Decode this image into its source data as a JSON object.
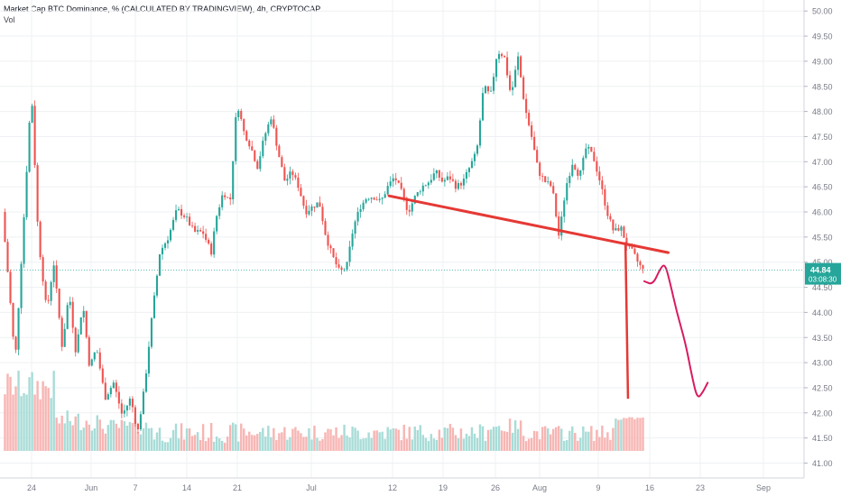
{
  "header": {
    "title": "Market Cap BTC Dominance, % (CALCULATED BY TRADINGVIEW), 4h, CRYPTOCAP",
    "volume_label": "Vol"
  },
  "price_axis": {
    "ticks": [
      "50.00",
      "49.50",
      "49.00",
      "48.50",
      "48.00",
      "47.50",
      "47.00",
      "46.50",
      "46.00",
      "45.50",
      "45.00",
      "44.50",
      "44.00",
      "43.50",
      "43.00",
      "42.50",
      "42.00",
      "41.50",
      "41.00"
    ]
  },
  "time_axis": {
    "ticks": [
      "24",
      "Jun",
      "7",
      "14",
      "21",
      "Jul",
      "12",
      "19",
      "26",
      "Aug",
      "9",
      "16",
      "23",
      "Sep"
    ]
  },
  "last_price": {
    "value": "44.84",
    "countdown": "03:08:30"
  },
  "colors": {
    "up": "#26a69a",
    "down": "#ef5350",
    "vol_up": "#a8dcd7",
    "vol_down": "#f7b5b3",
    "annotation": "#e53935",
    "annotation_path": "#d81b60",
    "grid": "#eef0f3",
    "axis_text": "#787b86"
  },
  "chart_data": {
    "type": "candlestick",
    "title": "Market Cap BTC Dominance, % (CALCULATED BY TRADINGVIEW), 4h, CRYPTOCAP",
    "timeframe": "4h",
    "ylim": [
      40.85,
      50.15
    ],
    "y_ticks": [
      41.0,
      41.5,
      42.0,
      42.5,
      43.0,
      43.5,
      44.0,
      44.5,
      45.0,
      45.5,
      46.0,
      46.5,
      47.0,
      47.5,
      48.0,
      48.5,
      49.0,
      49.5,
      50.0
    ],
    "last_value": 44.84,
    "grid": true,
    "price_path": [
      [
        0,
        46.0
      ],
      [
        0.8,
        44.5
      ],
      [
        1.5,
        43.0
      ],
      [
        2.5,
        45.8
      ],
      [
        3.4,
        48.45
      ],
      [
        4.2,
        45.5
      ],
      [
        5.2,
        44.0
      ],
      [
        6.0,
        45.0
      ],
      [
        7.0,
        43.3
      ],
      [
        7.8,
        44.4
      ],
      [
        8.6,
        43.2
      ],
      [
        9.4,
        44.2
      ],
      [
        10.2,
        42.9
      ],
      [
        11.0,
        43.3
      ],
      [
        12.0,
        42.3
      ],
      [
        13.0,
        42.6
      ],
      [
        14.0,
        41.95
      ],
      [
        15.0,
        42.3
      ],
      [
        15.8,
        41.6
      ],
      [
        16.6,
        42.5
      ],
      [
        17.4,
        43.8
      ],
      [
        18.4,
        45.2
      ],
      [
        19.4,
        45.5
      ],
      [
        20.4,
        46.05
      ],
      [
        21.4,
        45.9
      ],
      [
        22.4,
        45.6
      ],
      [
        23.4,
        45.6
      ],
      [
        24.4,
        45.2
      ],
      [
        25.0,
        45.9
      ],
      [
        25.8,
        46.4
      ],
      [
        26.6,
        46.2
      ],
      [
        27.4,
        48.2
      ],
      [
        28.2,
        47.6
      ],
      [
        29.0,
        47.3
      ],
      [
        29.8,
        46.9
      ],
      [
        30.6,
        47.5
      ],
      [
        31.4,
        47.9
      ],
      [
        32.2,
        47.2
      ],
      [
        33.0,
        46.6
      ],
      [
        33.8,
        46.8
      ],
      [
        34.6,
        46.5
      ],
      [
        35.4,
        46.0
      ],
      [
        36.2,
        46.1
      ],
      [
        37.0,
        46.2
      ],
      [
        37.8,
        45.5
      ],
      [
        38.6,
        45.1
      ],
      [
        39.4,
        44.8
      ],
      [
        40.2,
        44.9
      ],
      [
        41.0,
        45.7
      ],
      [
        41.8,
        46.1
      ],
      [
        42.6,
        46.3
      ],
      [
        43.4,
        46.3
      ],
      [
        44.2,
        46.2
      ],
      [
        45.0,
        46.5
      ],
      [
        45.8,
        46.7
      ],
      [
        46.6,
        46.4
      ],
      [
        47.4,
        46.0
      ],
      [
        48.2,
        46.3
      ],
      [
        49.0,
        46.5
      ],
      [
        49.8,
        46.6
      ],
      [
        50.6,
        46.8
      ],
      [
        51.4,
        46.6
      ],
      [
        52.2,
        46.7
      ],
      [
        53.0,
        46.5
      ],
      [
        53.8,
        46.6
      ],
      [
        54.6,
        46.9
      ],
      [
        55.4,
        47.2
      ],
      [
        56.2,
        48.5
      ],
      [
        57.0,
        48.3
      ],
      [
        57.8,
        49.2
      ],
      [
        58.6,
        49.1
      ],
      [
        59.4,
        48.3
      ],
      [
        60.2,
        49.1
      ],
      [
        61.0,
        48.1
      ],
      [
        61.8,
        47.5
      ],
      [
        62.6,
        46.8
      ],
      [
        63.4,
        46.6
      ],
      [
        64.2,
        46.5
      ],
      [
        65.0,
        45.5
      ],
      [
        65.8,
        46.5
      ],
      [
        66.6,
        47.0
      ],
      [
        67.4,
        46.7
      ],
      [
        68.2,
        47.3
      ],
      [
        69.0,
        47.1
      ],
      [
        69.8,
        46.6
      ],
      [
        70.6,
        46.0
      ],
      [
        71.4,
        45.6
      ],
      [
        72.2,
        45.7
      ],
      [
        73.0,
        45.3
      ],
      [
        73.6,
        45.2
      ],
      [
        74.2,
        45.0
      ],
      [
        74.8,
        44.84
      ]
    ],
    "annotations": {
      "trendline": [
        [
          45.0,
          46.32
        ],
        [
          77.6,
          45.19
        ]
      ],
      "target_line": [
        [
          72.6,
          45.4
        ],
        [
          72.9,
          42.28
        ]
      ],
      "projected_path": [
        [
          74.8,
          44.62
        ],
        [
          75.8,
          44.55
        ],
        [
          76.6,
          44.85
        ],
        [
          77.2,
          44.98
        ],
        [
          77.8,
          44.6
        ],
        [
          78.6,
          44.0
        ],
        [
          79.6,
          43.4
        ],
        [
          80.4,
          42.7
        ],
        [
          81.0,
          42.28
        ],
        [
          81.6,
          42.4
        ],
        [
          82.2,
          42.6
        ]
      ]
    },
    "volume": {
      "scale": "relative"
    }
  }
}
